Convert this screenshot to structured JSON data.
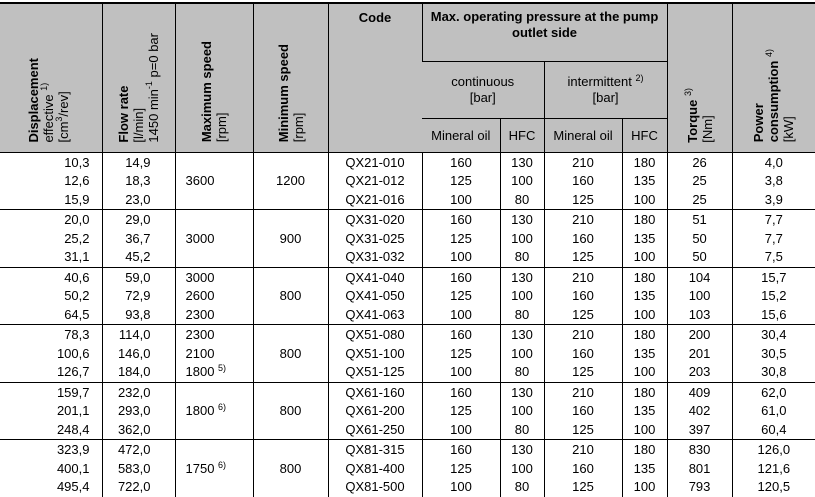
{
  "header": {
    "displacement": {
      "title": "Displacement",
      "line2": "effective",
      "note": "1)",
      "unit_pre": "[cm",
      "unit_sup": "3",
      "unit_post": "/rev]"
    },
    "flow_rate": {
      "title": "Flow rate",
      "unit": "[l/min]",
      "cond_pre": "1450 min",
      "cond_sup": "-1",
      "cond_post": " p=0 bar"
    },
    "max_speed": {
      "title": "Maximum speed",
      "unit": "[rpm]"
    },
    "min_speed": {
      "title": "Minimum speed",
      "unit": "[rpm]"
    },
    "code": "Code",
    "pressure_group": "Max. operating pressure at the pump outlet side",
    "continuous": {
      "title": "continuous",
      "unit": "[bar]"
    },
    "intermittent": {
      "title": "intermittent",
      "note": "2)",
      "unit": "[bar]"
    },
    "mineral_oil": "Mineral oil",
    "hfc": "HFC",
    "torque": {
      "title": "Torque",
      "note": "3)",
      "unit": "[Nm]"
    },
    "power": {
      "title": "Power",
      "line2": "consumption",
      "note": "4)",
      "unit": "[kW]"
    }
  },
  "groups": [
    {
      "rows": [
        {
          "disp": "10,3",
          "flow": "14,9",
          "max": "",
          "maxnote": "",
          "min": "",
          "code": "QX21-010",
          "cmo": "160",
          "chfc": "130",
          "imo": "210",
          "ihfc": "180",
          "torque": "26",
          "power": "4,0"
        },
        {
          "disp": "12,6",
          "flow": "18,3",
          "max": "3600",
          "maxnote": "",
          "min": "1200",
          "code": "QX21-012",
          "cmo": "125",
          "chfc": "100",
          "imo": "160",
          "ihfc": "135",
          "torque": "25",
          "power": "3,8"
        },
        {
          "disp": "15,9",
          "flow": "23,0",
          "max": "",
          "maxnote": "",
          "min": "",
          "code": "QX21-016",
          "cmo": "100",
          "chfc": "80",
          "imo": "125",
          "ihfc": "100",
          "torque": "25",
          "power": "3,9"
        }
      ]
    },
    {
      "rows": [
        {
          "disp": "20,0",
          "flow": "29,0",
          "max": "",
          "maxnote": "",
          "min": "",
          "code": "QX31-020",
          "cmo": "160",
          "chfc": "130",
          "imo": "210",
          "ihfc": "180",
          "torque": "51",
          "power": "7,7"
        },
        {
          "disp": "25,2",
          "flow": "36,7",
          "max": "3000",
          "maxnote": "",
          "min": "900",
          "code": "QX31-025",
          "cmo": "125",
          "chfc": "100",
          "imo": "160",
          "ihfc": "135",
          "torque": "50",
          "power": "7,7"
        },
        {
          "disp": "31,1",
          "flow": "45,2",
          "max": "",
          "maxnote": "",
          "min": "",
          "code": "QX31-032",
          "cmo": "100",
          "chfc": "80",
          "imo": "125",
          "ihfc": "100",
          "torque": "50",
          "power": "7,5"
        }
      ]
    },
    {
      "rows": [
        {
          "disp": "40,6",
          "flow": "59,0",
          "max": "3000",
          "maxnote": "",
          "min": "",
          "code": "QX41-040",
          "cmo": "160",
          "chfc": "130",
          "imo": "210",
          "ihfc": "180",
          "torque": "104",
          "power": "15,7"
        },
        {
          "disp": "50,2",
          "flow": "72,9",
          "max": "2600",
          "maxnote": "",
          "min": "800",
          "code": "QX41-050",
          "cmo": "125",
          "chfc": "100",
          "imo": "160",
          "ihfc": "135",
          "torque": "100",
          "power": "15,2"
        },
        {
          "disp": "64,5",
          "flow": "93,8",
          "max": "2300",
          "maxnote": "",
          "min": "",
          "code": "QX41-063",
          "cmo": "100",
          "chfc": "80",
          "imo": "125",
          "ihfc": "100",
          "torque": "103",
          "power": "15,6"
        }
      ]
    },
    {
      "rows": [
        {
          "disp": "78,3",
          "flow": "114,0",
          "max": "2300",
          "maxnote": "",
          "min": "",
          "code": "QX51-080",
          "cmo": "160",
          "chfc": "130",
          "imo": "210",
          "ihfc": "180",
          "torque": "200",
          "power": "30,4"
        },
        {
          "disp": "100,6",
          "flow": "146,0",
          "max": "2100",
          "maxnote": "",
          "min": "800",
          "code": "QX51-100",
          "cmo": "125",
          "chfc": "100",
          "imo": "160",
          "ihfc": "135",
          "torque": "201",
          "power": "30,5"
        },
        {
          "disp": "126,7",
          "flow": "184,0",
          "max": "1800",
          "maxnote": "5)",
          "min": "",
          "code": "QX51-125",
          "cmo": "100",
          "chfc": "80",
          "imo": "125",
          "ihfc": "100",
          "torque": "203",
          "power": "30,8"
        }
      ]
    },
    {
      "rows": [
        {
          "disp": "159,7",
          "flow": "232,0",
          "max": "",
          "maxnote": "",
          "min": "",
          "code": "QX61-160",
          "cmo": "160",
          "chfc": "130",
          "imo": "210",
          "ihfc": "180",
          "torque": "409",
          "power": "62,0"
        },
        {
          "disp": "201,1",
          "flow": "293,0",
          "max": "1800",
          "maxnote": "6)",
          "min": "800",
          "code": "QX61-200",
          "cmo": "125",
          "chfc": "100",
          "imo": "160",
          "ihfc": "135",
          "torque": "402",
          "power": "61,0"
        },
        {
          "disp": "248,4",
          "flow": "362,0",
          "max": "",
          "maxnote": "",
          "min": "",
          "code": "QX61-250",
          "cmo": "100",
          "chfc": "80",
          "imo": "125",
          "ihfc": "100",
          "torque": "397",
          "power": "60,4"
        }
      ]
    },
    {
      "rows": [
        {
          "disp": "323,9",
          "flow": "472,0",
          "max": "",
          "maxnote": "",
          "min": "",
          "code": "QX81-315",
          "cmo": "160",
          "chfc": "130",
          "imo": "210",
          "ihfc": "180",
          "torque": "830",
          "power": "126,0"
        },
        {
          "disp": "400,1",
          "flow": "583,0",
          "max": "1750",
          "maxnote": "6)",
          "min": "800",
          "code": "QX81-400",
          "cmo": "125",
          "chfc": "100",
          "imo": "160",
          "ihfc": "135",
          "torque": "801",
          "power": "121,6"
        },
        {
          "disp": "495,4",
          "flow": "722,0",
          "max": "",
          "maxnote": "",
          "min": "",
          "code": "QX81-500",
          "cmo": "100",
          "chfc": "80",
          "imo": "125",
          "ihfc": "100",
          "torque": "793",
          "power": "120,5"
        }
      ]
    }
  ]
}
